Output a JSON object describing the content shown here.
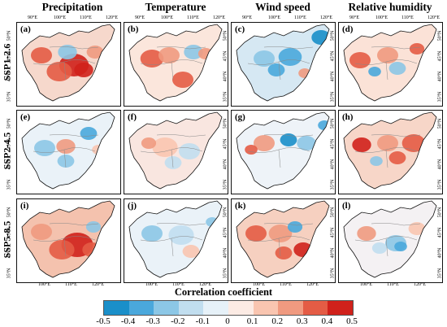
{
  "columns": [
    "Precipitation",
    "Temperature",
    "Wind speed",
    "Relative humidity"
  ],
  "rows": [
    "SSP1-2.6",
    "SSP2-4.5",
    "SSP5-8.5"
  ],
  "panel_labels": [
    "(a)",
    "(b)",
    "(c)",
    "(d)",
    "(e)",
    "(f)",
    "(g)",
    "(h)",
    "(i)",
    "(j)",
    "(k)",
    "(l)"
  ],
  "top_lon_ticks": [
    "90°E",
    "100°E",
    "110°E",
    "120°E"
  ],
  "bottom_lon_ticks": [
    "100°E",
    "110°E",
    "120°E"
  ],
  "lat_ticks": [
    "50°N",
    "45°N",
    "40°N",
    "35°N"
  ],
  "colorbar": {
    "title": "Correlation coefficient",
    "ticks": [
      "-0.5",
      "-0.4",
      "-0.3",
      "-0.2",
      "-0.1",
      "0",
      "0.1",
      "0.2",
      "0.3",
      "0.4",
      "0.5"
    ],
    "colors": [
      "#1a8fc9",
      "#4aa8dc",
      "#8cc7e6",
      "#c1deef",
      "#e6f1f8",
      "#fcebe4",
      "#f9c5b0",
      "#f09a80",
      "#e45c45",
      "#d0211b"
    ]
  },
  "panel_patterns": [
    {
      "base": "#f6d8cc",
      "blobs": [
        {
          "c": "#d0211b",
          "x": 70,
          "y": 52,
          "r": 14
        },
        {
          "c": "#e45c45",
          "x": 52,
          "y": 60,
          "r": 12
        },
        {
          "c": "#e45c45",
          "x": 30,
          "y": 40,
          "r": 10
        },
        {
          "c": "#8cc7e6",
          "x": 62,
          "y": 36,
          "r": 9
        },
        {
          "c": "#d0211b",
          "x": 82,
          "y": 58,
          "r": 9
        },
        {
          "c": "#f09a80",
          "x": 96,
          "y": 36,
          "r": 8
        }
      ]
    },
    {
      "base": "#fbe6dc",
      "blobs": [
        {
          "c": "#e45c45",
          "x": 34,
          "y": 44,
          "r": 11
        },
        {
          "c": "#f09a80",
          "x": 55,
          "y": 40,
          "r": 10
        },
        {
          "c": "#8cc7e6",
          "x": 85,
          "y": 36,
          "r": 9
        },
        {
          "c": "#e45c45",
          "x": 72,
          "y": 70,
          "r": 10
        },
        {
          "c": "#f09a80",
          "x": 100,
          "y": 38,
          "r": 7
        }
      ]
    },
    {
      "base": "#d6e8f3",
      "blobs": [
        {
          "c": "#4aa8dc",
          "x": 72,
          "y": 42,
          "r": 11
        },
        {
          "c": "#1a8fc9",
          "x": 110,
          "y": 18,
          "r": 9
        },
        {
          "c": "#8cc7e6",
          "x": 40,
          "y": 44,
          "r": 10
        },
        {
          "c": "#f09a80",
          "x": 90,
          "y": 62,
          "r": 6
        },
        {
          "c": "#4aa8dc",
          "x": 55,
          "y": 58,
          "r": 8
        }
      ]
    },
    {
      "base": "#fbe2d7",
      "blobs": [
        {
          "c": "#e45c45",
          "x": 26,
          "y": 46,
          "r": 10
        },
        {
          "c": "#f09a80",
          "x": 60,
          "y": 40,
          "r": 10
        },
        {
          "c": "#8cc7e6",
          "x": 72,
          "y": 56,
          "r": 8
        },
        {
          "c": "#e45c45",
          "x": 96,
          "y": 32,
          "r": 7
        },
        {
          "c": "#4aa8dc",
          "x": 44,
          "y": 60,
          "r": 6
        }
      ]
    },
    {
      "base": "#eaf2f8",
      "blobs": [
        {
          "c": "#8cc7e6",
          "x": 34,
          "y": 46,
          "r": 10
        },
        {
          "c": "#4aa8dc",
          "x": 88,
          "y": 28,
          "r": 8
        },
        {
          "c": "#f09a80",
          "x": 60,
          "y": 44,
          "r": 9
        },
        {
          "c": "#8cc7e6",
          "x": 60,
          "y": 62,
          "r": 8
        },
        {
          "c": "#f9c5b0",
          "x": 100,
          "y": 48,
          "r": 6
        }
      ]
    },
    {
      "base": "#f9e6e0",
      "blobs": [
        {
          "c": "#f9c5b0",
          "x": 50,
          "y": 45,
          "r": 12
        },
        {
          "c": "#c1deef",
          "x": 80,
          "y": 50,
          "r": 10
        },
        {
          "c": "#f09a80",
          "x": 30,
          "y": 40,
          "r": 7
        },
        {
          "c": "#c1deef",
          "x": 60,
          "y": 64,
          "r": 8
        }
      ]
    },
    {
      "base": "#eef3f8",
      "blobs": [
        {
          "c": "#1a8fc9",
          "x": 70,
          "y": 36,
          "r": 8
        },
        {
          "c": "#f09a80",
          "x": 40,
          "y": 40,
          "r": 10
        },
        {
          "c": "#8cc7e6",
          "x": 92,
          "y": 40,
          "r": 9
        },
        {
          "c": "#e45c45",
          "x": 24,
          "y": 48,
          "r": 6
        },
        {
          "c": "#4aa8dc",
          "x": 114,
          "y": 18,
          "r": 6
        }
      ]
    },
    {
      "base": "#f7d6c8",
      "blobs": [
        {
          "c": "#d0211b",
          "x": 28,
          "y": 42,
          "r": 9
        },
        {
          "c": "#e45c45",
          "x": 92,
          "y": 40,
          "r": 11
        },
        {
          "c": "#f09a80",
          "x": 60,
          "y": 40,
          "r": 10
        },
        {
          "c": "#e45c45",
          "x": 72,
          "y": 58,
          "r": 8
        },
        {
          "c": "#8cc7e6",
          "x": 46,
          "y": 62,
          "r": 6
        }
      ]
    },
    {
      "base": "#f4c2ae",
      "blobs": [
        {
          "c": "#d0211b",
          "x": 74,
          "y": 56,
          "r": 15
        },
        {
          "c": "#e45c45",
          "x": 55,
          "y": 62,
          "r": 12
        },
        {
          "c": "#f09a80",
          "x": 30,
          "y": 40,
          "r": 10
        },
        {
          "c": "#e45c45",
          "x": 92,
          "y": 62,
          "r": 9
        },
        {
          "c": "#8cc7e6",
          "x": 94,
          "y": 34,
          "r": 7
        }
      ]
    },
    {
      "base": "#eaf2f8",
      "blobs": [
        {
          "c": "#8cc7e6",
          "x": 34,
          "y": 42,
          "r": 10
        },
        {
          "c": "#c1deef",
          "x": 70,
          "y": 44,
          "r": 12
        },
        {
          "c": "#f9c5b0",
          "x": 82,
          "y": 64,
          "r": 8
        },
        {
          "c": "#8cc7e6",
          "x": 108,
          "y": 28,
          "r": 6
        }
      ]
    },
    {
      "base": "#f6d0c0",
      "blobs": [
        {
          "c": "#e45c45",
          "x": 30,
          "y": 42,
          "r": 10
        },
        {
          "c": "#d0211b",
          "x": 88,
          "y": 62,
          "r": 9
        },
        {
          "c": "#f09a80",
          "x": 60,
          "y": 42,
          "r": 11
        },
        {
          "c": "#4aa8dc",
          "x": 78,
          "y": 34,
          "r": 7
        },
        {
          "c": "#e45c45",
          "x": 64,
          "y": 66,
          "r": 8
        }
      ]
    },
    {
      "base": "#f4f1f3",
      "blobs": [
        {
          "c": "#8cc7e6",
          "x": 70,
          "y": 54,
          "r": 10
        },
        {
          "c": "#f09a80",
          "x": 34,
          "y": 42,
          "r": 9
        },
        {
          "c": "#4aa8dc",
          "x": 76,
          "y": 58,
          "r": 6
        },
        {
          "c": "#f9c5b0",
          "x": 96,
          "y": 36,
          "r": 8
        },
        {
          "c": "#c1deef",
          "x": 50,
          "y": 60,
          "r": 7
        }
      ]
    }
  ]
}
